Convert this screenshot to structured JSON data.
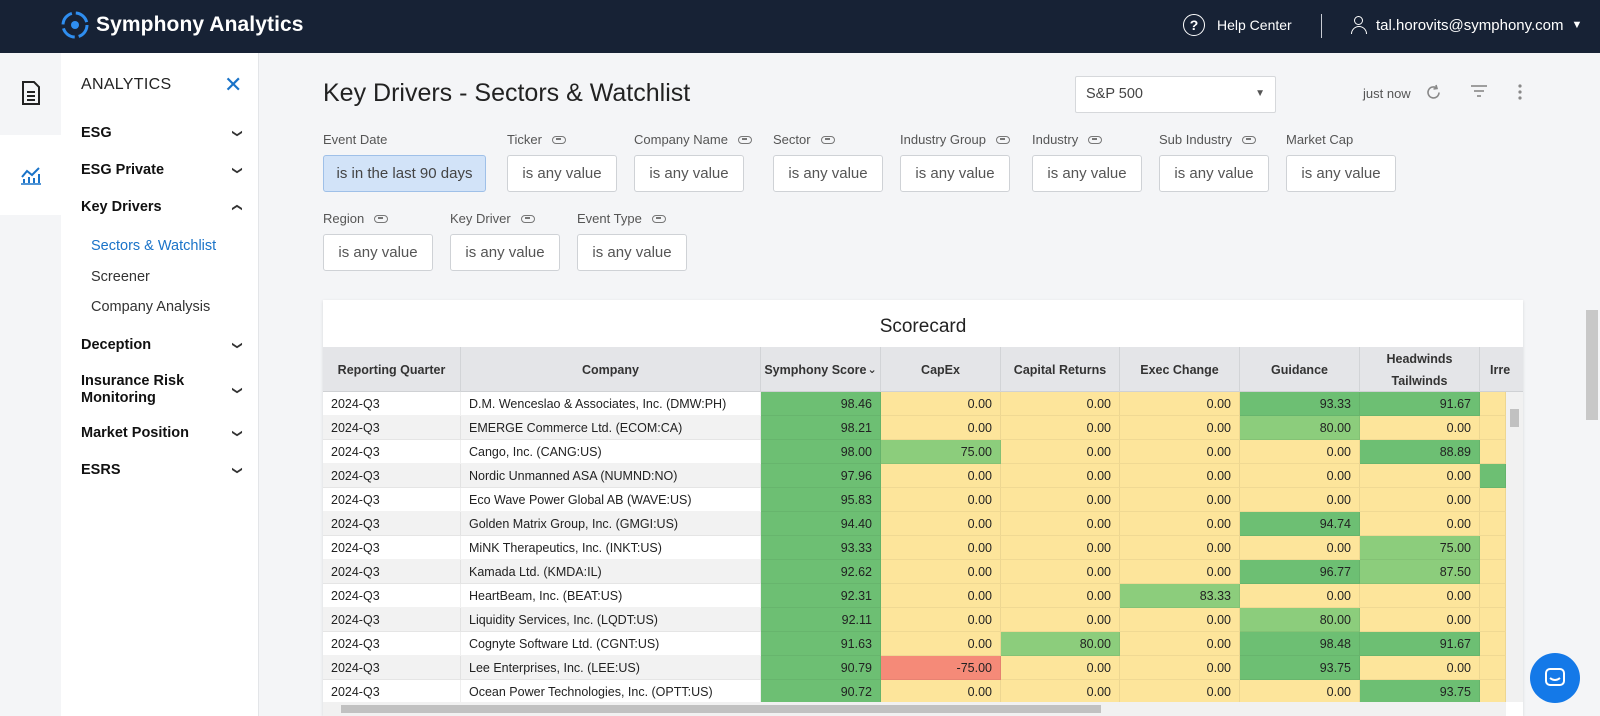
{
  "topbar": {
    "brand": "Symphony Analytics",
    "help_label": "Help Center",
    "user_email": "tal.horovits@symphony.com"
  },
  "nav": {
    "heading": "ANALYTICS",
    "sections": [
      {
        "label": "ESG",
        "expanded": false
      },
      {
        "label": "ESG Private",
        "expanded": false
      },
      {
        "label": "Key Drivers",
        "expanded": true
      },
      {
        "label": "Deception",
        "expanded": false
      },
      {
        "label": "Insurance Risk Monitoring",
        "expanded": false
      },
      {
        "label": "Market Position",
        "expanded": false
      },
      {
        "label": "ESRS",
        "expanded": false
      }
    ],
    "key_driver_items": [
      "Sectors & Watchlist",
      "Screener",
      "Company Analysis"
    ],
    "insurance_line1": "Insurance Risk",
    "insurance_line2": "Monitoring"
  },
  "page": {
    "title": "Key Drivers - Sectors & Watchlist",
    "index_selected": "S&P 500",
    "refreshed": "just now"
  },
  "filters": [
    {
      "label": "Event Date",
      "value": "is in the last 90 days",
      "linked": false
    },
    {
      "label": "Ticker",
      "value": "is any value",
      "linked": true
    },
    {
      "label": "Company Name",
      "value": "is any value",
      "linked": true
    },
    {
      "label": "Sector",
      "value": "is any value",
      "linked": true
    },
    {
      "label": "Industry Group",
      "value": "is any value",
      "linked": true
    },
    {
      "label": "Industry",
      "value": "is any value",
      "linked": true
    },
    {
      "label": "Sub Industry",
      "value": "is any value",
      "linked": true
    },
    {
      "label": "Market Cap",
      "value": "is any value",
      "linked": false
    },
    {
      "label": "Region",
      "value": "is any value",
      "linked": true
    },
    {
      "label": "Key Driver",
      "value": "is any value",
      "linked": true
    },
    {
      "label": "Event Type",
      "value": "is any value",
      "linked": true
    }
  ],
  "scorecard": {
    "title": "Scorecard",
    "columns": [
      "Reporting Quarter",
      "Company",
      "Symphony Score",
      "CapEx",
      "Capital Returns",
      "Exec Change",
      "Guidance",
      "Headwinds Tailwinds",
      "Irre"
    ],
    "headwinds_line1": "Headwinds",
    "headwinds_line2": "Tailwinds",
    "sort_indicator": "⌄",
    "rows": [
      [
        "2024-Q3",
        "D.M. Wenceslao & Associates, Inc. (DMW:PH)",
        "98.46",
        "0.00",
        "0.00",
        "0.00",
        "93.33",
        "91.67"
      ],
      [
        "2024-Q3",
        "EMERGE Commerce Ltd. (ECOM:CA)",
        "98.21",
        "0.00",
        "0.00",
        "0.00",
        "80.00",
        "0.00"
      ],
      [
        "2024-Q3",
        "Cango, Inc. (CANG:US)",
        "98.00",
        "75.00",
        "0.00",
        "0.00",
        "0.00",
        "88.89"
      ],
      [
        "2024-Q3",
        "Nordic Unmanned ASA (NUMND:NO)",
        "97.96",
        "0.00",
        "0.00",
        "0.00",
        "0.00",
        "0.00"
      ],
      [
        "2024-Q3",
        "Eco Wave Power Global AB (WAVE:US)",
        "95.83",
        "0.00",
        "0.00",
        "0.00",
        "0.00",
        "0.00"
      ],
      [
        "2024-Q3",
        "Golden Matrix Group, Inc. (GMGI:US)",
        "94.40",
        "0.00",
        "0.00",
        "0.00",
        "94.74",
        "0.00"
      ],
      [
        "2024-Q3",
        "MiNK Therapeutics, Inc. (INKT:US)",
        "93.33",
        "0.00",
        "0.00",
        "0.00",
        "0.00",
        "75.00"
      ],
      [
        "2024-Q3",
        "Kamada Ltd. (KMDA:IL)",
        "92.62",
        "0.00",
        "0.00",
        "0.00",
        "96.77",
        "87.50"
      ],
      [
        "2024-Q3",
        "HeartBeam, Inc. (BEAT:US)",
        "92.31",
        "0.00",
        "0.00",
        "83.33",
        "0.00",
        "0.00"
      ],
      [
        "2024-Q3",
        "Liquidity Services, Inc. (LQDT:US)",
        "92.11",
        "0.00",
        "0.00",
        "0.00",
        "80.00",
        "0.00"
      ],
      [
        "2024-Q3",
        "Cognyte Software Ltd. (CGNT:US)",
        "91.63",
        "0.00",
        "80.00",
        "0.00",
        "98.48",
        "91.67"
      ],
      [
        "2024-Q3",
        "Lee Enterprises, Inc. (LEE:US)",
        "90.79",
        "-75.00",
        "0.00",
        "0.00",
        "93.75",
        "0.00"
      ],
      [
        "2024-Q3",
        "Ocean Power Technologies, Inc. (OPTT:US)",
        "90.72",
        "0.00",
        "0.00",
        "0.00",
        "0.00",
        "93.75"
      ]
    ],
    "irre_col_green_rows": [
      3
    ]
  },
  "colors": {
    "topbar": "#172235",
    "accent": "#1a73c8",
    "score_green": "#6dbf73",
    "mid_green": "#8ccd7c",
    "neutral_yellow": "#fde59b",
    "negative_red": "#f58a78"
  }
}
